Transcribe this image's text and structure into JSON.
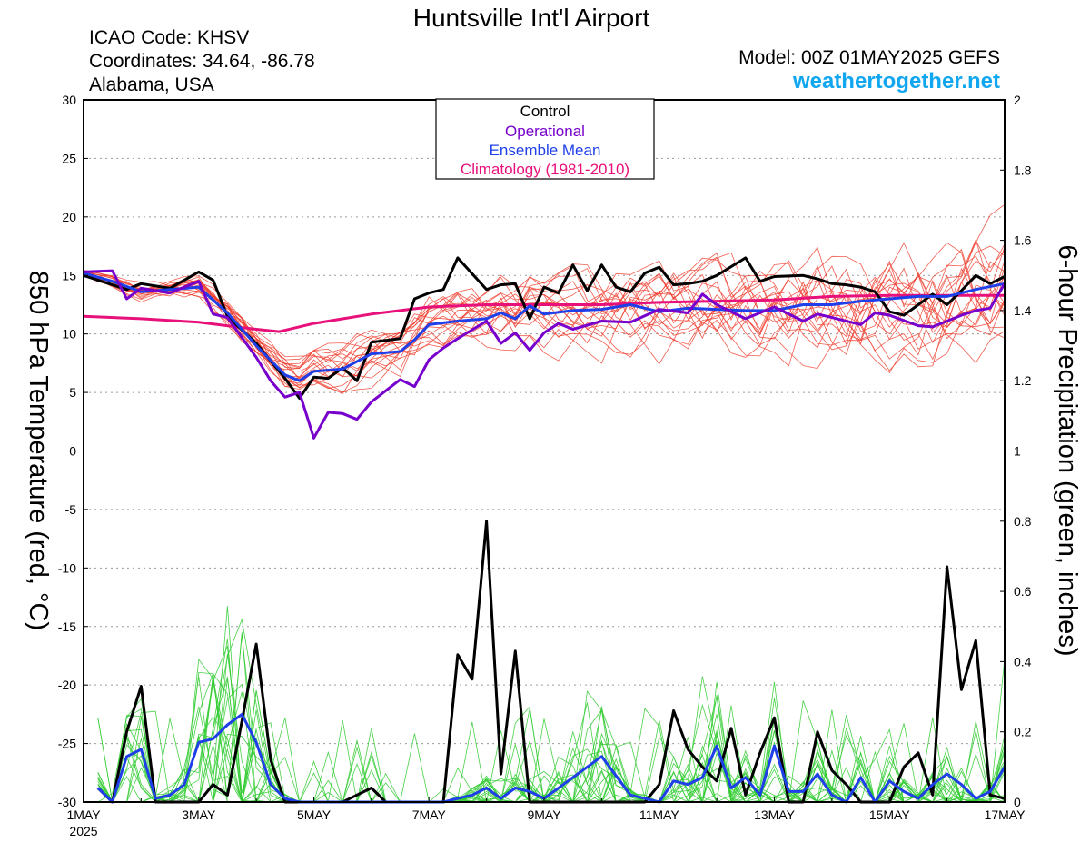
{
  "header": {
    "title": "Huntsville Int'l Airport",
    "icao": "ICAO Code: KHSV",
    "coordinates": "Coordinates: 34.64, -86.78",
    "region": "Alabama, USA",
    "model": "Model: 00Z 01MAY2025 GEFS",
    "site": "weathertogether.net"
  },
  "legend": {
    "control": "Control",
    "operational": "Operational",
    "ensemble_mean": "Ensemble Mean",
    "climatology": "Climatology (1981-2010)"
  },
  "colors": {
    "control": "#000000",
    "operational": "#7700cc",
    "ensemble_mean": "#1f3fe8",
    "climatology": "#e8107a",
    "members_temp": "#f04030",
    "members_precip": "#33cc33",
    "site": "#11a7f0"
  },
  "chart_data": {
    "type": "line",
    "ylabel_left": "850 hPa Temperature (red, °C)",
    "ylabel_right": "6-hour Precipitation (green, inches)",
    "xlim_days": [
      0,
      16
    ],
    "ylim_left": [
      -30,
      30
    ],
    "ylim_right": [
      0,
      2
    ],
    "grid": "horizontal-dotted",
    "legend_position": "top-center",
    "x_ticks": [
      {
        "day": 0,
        "label": "1MAY",
        "sub": "2025"
      },
      {
        "day": 2,
        "label": "3MAY",
        "sub": ""
      },
      {
        "day": 4,
        "label": "5MAY",
        "sub": ""
      },
      {
        "day": 6,
        "label": "7MAY",
        "sub": ""
      },
      {
        "day": 8,
        "label": "9MAY",
        "sub": ""
      },
      {
        "day": 10,
        "label": "11MAY",
        "sub": ""
      },
      {
        "day": 12,
        "label": "13MAY",
        "sub": ""
      },
      {
        "day": 14,
        "label": "15MAY",
        "sub": ""
      },
      {
        "day": 16,
        "label": "17MAY",
        "sub": ""
      }
    ],
    "y_ticks_left": [
      30,
      25,
      20,
      15,
      10,
      5,
      0,
      -5,
      -10,
      -15,
      -20,
      -25,
      -30
    ],
    "y_ticks_right": [
      2,
      1.8,
      1.6,
      1.4,
      1.2,
      1,
      0.8,
      0.6,
      0.4,
      0.2,
      0
    ],
    "temperature_series": [
      {
        "key": "climatology",
        "days": [
          0,
          1,
          2,
          3,
          3.4,
          4,
          5,
          6,
          7,
          8,
          9,
          10,
          11,
          12,
          13,
          14,
          15,
          16
        ],
        "values": [
          11.5,
          11.3,
          11.0,
          10.4,
          10.2,
          10.9,
          11.7,
          12.3,
          12.5,
          12.5,
          12.5,
          12.7,
          12.8,
          12.9,
          13.2,
          13.3,
          13.3,
          13.3
        ]
      },
      {
        "key": "control",
        "days": [
          0,
          0.75,
          1.0,
          1.5,
          2.0,
          2.25,
          2.5,
          3.0,
          3.5,
          3.75,
          4.0,
          4.25,
          4.5,
          4.75,
          5.0,
          5.5,
          5.75,
          6.0,
          6.25,
          6.5,
          7.0,
          7.25,
          7.5,
          7.75,
          8.0,
          8.25,
          8.5,
          8.75,
          9.0,
          9.25,
          9.5,
          9.75,
          10.0,
          10.25,
          10.5,
          10.75,
          11.0,
          11.5,
          11.75,
          12.0,
          12.5,
          12.75,
          13.0,
          13.25,
          13.5,
          13.75,
          14.0,
          14.25,
          14.5,
          14.75,
          15.0,
          15.25,
          15.5,
          15.75,
          16.0
        ],
        "values": [
          15.0,
          13.8,
          14.3,
          13.9,
          15.3,
          14.6,
          11.5,
          9.2,
          6.2,
          4.5,
          6.3,
          6.2,
          7.1,
          6.0,
          9.3,
          9.6,
          13.0,
          13.5,
          13.8,
          16.5,
          13.8,
          14.2,
          14.3,
          11.3,
          14.0,
          13.5,
          15.9,
          13.7,
          15.9,
          14.0,
          13.6,
          15.2,
          15.7,
          14.2,
          14.3,
          14.5,
          15.0,
          16.5,
          14.5,
          14.9,
          15.0,
          14.7,
          14.3,
          14.2,
          14.0,
          13.6,
          11.9,
          11.6,
          12.5,
          13.4,
          12.5,
          13.7,
          15.0,
          14.3,
          14.9
        ]
      },
      {
        "key": "ensemble_mean",
        "days": [
          0,
          0.5,
          1.0,
          1.5,
          2.0,
          2.5,
          3.0,
          3.5,
          3.75,
          4.0,
          4.5,
          5.0,
          5.5,
          5.75,
          6.0,
          6.5,
          7.0,
          7.25,
          7.5,
          7.75,
          8.0,
          8.5,
          9.0,
          9.5,
          10.0,
          10.5,
          11.0,
          11.5,
          12.0,
          12.5,
          13.0,
          13.5,
          14.0,
          14.5,
          15.0,
          15.5,
          16.0
        ],
        "values": [
          15.2,
          14.5,
          13.6,
          13.8,
          14.0,
          11.8,
          9.0,
          6.5,
          6.0,
          6.8,
          7.0,
          8.3,
          8.5,
          9.5,
          10.8,
          11.1,
          11.3,
          11.8,
          11.3,
          12.4,
          11.7,
          12.0,
          12.1,
          12.5,
          11.9,
          12.2,
          12.1,
          12.0,
          12.0,
          12.5,
          12.5,
          12.8,
          13.0,
          13.2,
          13.2,
          13.8,
          14.3
        ]
      },
      {
        "key": "operational",
        "days": [
          0,
          0.5,
          0.75,
          1.0,
          1.5,
          2.0,
          2.25,
          2.5,
          3.0,
          3.25,
          3.5,
          3.75,
          4.0,
          4.25,
          4.5,
          4.75,
          5.0,
          5.5,
          5.75,
          6.0,
          6.25,
          6.5,
          7.0,
          7.25,
          7.5,
          7.75,
          8.0,
          8.25,
          8.5,
          9.0,
          9.5,
          10.0,
          10.5,
          10.75,
          11.0,
          11.5,
          12.0,
          12.5,
          12.75,
          13.0,
          13.5,
          13.75,
          14.0,
          14.5,
          14.75,
          15.0,
          15.25,
          15.5,
          15.75,
          16.0
        ],
        "values": [
          15.3,
          15.4,
          13.0,
          13.9,
          13.5,
          14.5,
          11.7,
          11.4,
          8.0,
          6.0,
          4.6,
          5.0,
          1.1,
          3.3,
          3.2,
          2.7,
          4.2,
          6.1,
          5.5,
          7.8,
          8.8,
          9.6,
          11.1,
          9.2,
          10.1,
          8.6,
          10.1,
          10.9,
          10.4,
          11.1,
          11.0,
          12.1,
          11.8,
          13.4,
          12.5,
          11.3,
          12.3,
          11.1,
          11.7,
          11.4,
          10.8,
          11.8,
          11.6,
          10.7,
          10.6,
          11.1,
          11.6,
          12.0,
          12.2,
          14.3
        ]
      }
    ],
    "precip_series": [
      {
        "key": "control",
        "days": [
          0.25,
          0.5,
          0.75,
          1.0,
          1.25,
          1.5,
          1.75,
          2.0,
          2.25,
          2.5,
          2.75,
          3.0,
          3.25,
          3.5,
          3.75,
          4.0,
          4.5,
          5.0,
          5.25,
          5.5,
          6.0,
          6.25,
          6.5,
          6.75,
          7.0,
          7.25,
          7.5,
          7.75,
          8.0,
          8.5,
          9.0,
          9.5,
          9.75,
          10.0,
          10.25,
          10.5,
          10.75,
          11.0,
          11.25,
          11.5,
          11.75,
          12.0,
          12.25,
          12.5,
          12.75,
          13.0,
          13.25,
          13.5,
          13.75,
          14.0,
          14.25,
          14.5,
          14.75,
          15.0,
          15.25,
          15.5,
          15.75,
          16.0
        ],
        "values": [
          0.04,
          0.0,
          0.2,
          0.33,
          0.0,
          0.0,
          0.0,
          0.0,
          0.05,
          0.02,
          0.23,
          0.45,
          0.12,
          0.0,
          0.0,
          0.0,
          0.0,
          0.04,
          0.0,
          0.0,
          0.0,
          0.0,
          0.42,
          0.35,
          0.8,
          0.08,
          0.43,
          0.0,
          0.0,
          0.0,
          0.0,
          0.0,
          0.0,
          0.05,
          0.26,
          0.15,
          0.1,
          0.06,
          0.21,
          0.02,
          0.14,
          0.24,
          0.0,
          0.0,
          0.2,
          0.09,
          0.05,
          0.0,
          0.0,
          0.0,
          0.1,
          0.14,
          0.02,
          0.67,
          0.32,
          0.46,
          0.02,
          0.01
        ]
      },
      {
        "key": "ensemble_mean",
        "days": [
          0.25,
          0.5,
          0.75,
          1.0,
          1.25,
          1.5,
          1.75,
          2.0,
          2.25,
          2.5,
          2.75,
          3.0,
          3.25,
          3.5,
          3.75,
          4.0,
          4.5,
          5.0,
          5.25,
          5.5,
          6.0,
          6.25,
          6.5,
          6.75,
          7.0,
          7.25,
          7.5,
          7.75,
          8.0,
          8.5,
          9.0,
          9.5,
          9.75,
          10.0,
          10.25,
          10.5,
          10.75,
          11.0,
          11.25,
          11.5,
          11.75,
          12.0,
          12.25,
          12.5,
          12.75,
          13.0,
          13.25,
          13.5,
          13.75,
          14.0,
          14.25,
          14.5,
          14.75,
          15.0,
          15.25,
          15.5,
          15.75,
          16.0
        ],
        "values": [
          0.04,
          0.0,
          0.13,
          0.15,
          0.01,
          0.02,
          0.05,
          0.17,
          0.18,
          0.22,
          0.25,
          0.17,
          0.05,
          0.01,
          0.0,
          0.0,
          0.0,
          0.0,
          0.0,
          0.0,
          0.0,
          0.0,
          0.01,
          0.02,
          0.04,
          0.01,
          0.04,
          0.03,
          0.01,
          0.07,
          0.13,
          0.02,
          0.01,
          0.0,
          0.06,
          0.05,
          0.07,
          0.16,
          0.04,
          0.07,
          0.02,
          0.16,
          0.03,
          0.03,
          0.08,
          0.02,
          0.0,
          0.07,
          0.0,
          0.06,
          0.03,
          0.01,
          0.05,
          0.08,
          0.05,
          0.01,
          0.03,
          0.1
        ]
      }
    ]
  }
}
